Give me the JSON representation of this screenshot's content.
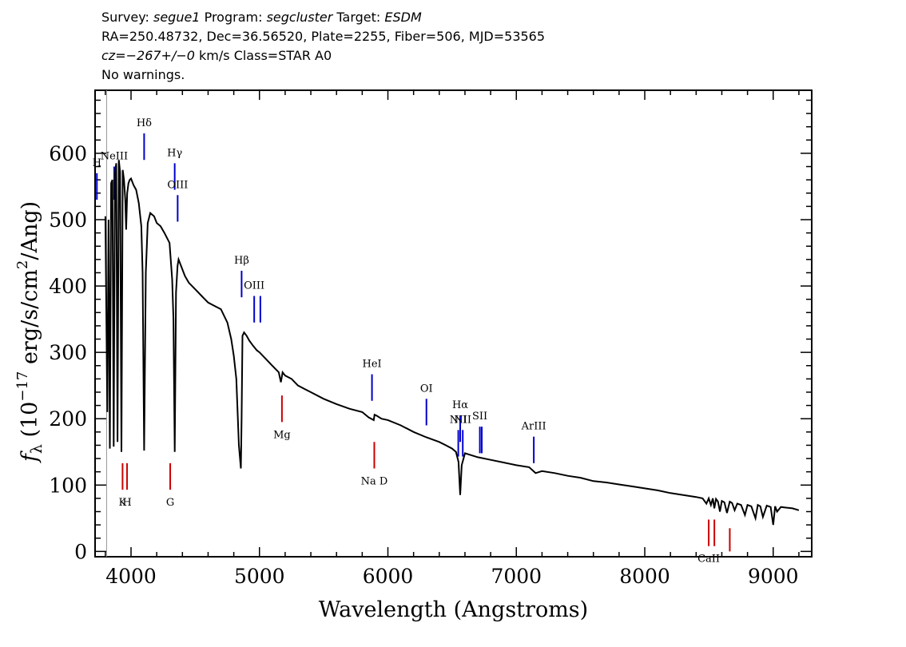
{
  "header": {
    "survey_label": "Survey:",
    "survey": "segue1",
    "program_label": "Program:",
    "program": "segcluster",
    "target_label": "Target:",
    "target": "ESDM",
    "line2": "RA=250.48732, Dec=36.56520, Plate=2255, Fiber=506, MJD=53565",
    "cz": "cz=−267+/−0",
    "cz_rest": " km/s Class=STAR A0",
    "warnings": "No warnings."
  },
  "chart_data": {
    "type": "line",
    "xlabel": "Wavelength (Angstroms)",
    "ylabel": "f_λ (10^-17 erg/s/cm^2/Ang)",
    "xlim": [
      3720,
      9300
    ],
    "ylim": [
      -8,
      695
    ],
    "x_ticks": [
      4000,
      5000,
      6000,
      7000,
      8000,
      9000
    ],
    "y_ticks": [
      0,
      100,
      200,
      300,
      400,
      500,
      600
    ],
    "series": [
      {
        "color": "#000000",
        "x": [
          3800,
          3815,
          3825,
          3835,
          3845,
          3855,
          3865,
          3875,
          3885,
          3895,
          3905,
          3915,
          3925,
          3935,
          3945,
          3955,
          3962,
          3970,
          3980,
          3990,
          4000,
          4020,
          4040,
          4060,
          4080,
          4090,
          4102,
          4115,
          4130,
          4150,
          4180,
          4200,
          4230,
          4260,
          4300,
          4320,
          4330,
          4340,
          4350,
          4362,
          4370,
          4390,
          4420,
          4450,
          4500,
          4550,
          4600,
          4650,
          4700,
          4750,
          4780,
          4800,
          4820,
          4840,
          4855,
          4861,
          4868,
          4880,
          4900,
          4920,
          4950,
          4980,
          5000,
          5050,
          5100,
          5150,
          5167,
          5180,
          5200,
          5250,
          5300,
          5400,
          5500,
          5600,
          5700,
          5800,
          5850,
          5890,
          5896,
          5910,
          5950,
          6000,
          6100,
          6200,
          6300,
          6400,
          6450,
          6500,
          6530,
          6550,
          6563,
          6575,
          6600,
          6650,
          6700,
          6800,
          6900,
          7000,
          7100,
          7150,
          7200,
          7300,
          7400,
          7500,
          7600,
          7700,
          7800,
          7900,
          8000,
          8100,
          8200,
          8300,
          8400,
          8450,
          8480,
          8498,
          8515,
          8530,
          8542,
          8555,
          8570,
          8585,
          8600,
          8620,
          8640,
          8662,
          8680,
          8700,
          8720,
          8750,
          8780,
          8800,
          8830,
          8862,
          8880,
          8900,
          8920,
          8950,
          8980,
          9000,
          9015,
          9030,
          9060,
          9100,
          9150,
          9200
        ],
        "y": [
          505,
          210,
          500,
          155,
          555,
          560,
          158,
          570,
          585,
          165,
          590,
          572,
          150,
          575,
          560,
          530,
          485,
          540,
          555,
          560,
          562,
          552,
          545,
          525,
          490,
          420,
          152,
          420,
          495,
          510,
          505,
          495,
          490,
          480,
          465,
          410,
          350,
          150,
          390,
          430,
          440,
          430,
          415,
          405,
          395,
          385,
          375,
          370,
          365,
          345,
          320,
          295,
          260,
          160,
          125,
          200,
          325,
          330,
          325,
          318,
          310,
          303,
          300,
          290,
          280,
          270,
          255,
          270,
          265,
          260,
          250,
          240,
          230,
          222,
          215,
          210,
          202,
          198,
          206,
          205,
          200,
          198,
          190,
          180,
          172,
          165,
          160,
          155,
          150,
          135,
          85,
          130,
          148,
          145,
          142,
          138,
          134,
          130,
          127,
          118,
          121,
          118,
          114,
          111,
          106,
          104,
          101,
          98,
          95,
          92,
          88,
          85,
          82,
          80,
          72,
          80,
          70,
          80,
          65,
          79,
          75,
          60,
          76,
          74,
          58,
          75,
          73,
          62,
          72,
          70,
          55,
          70,
          68,
          50,
          70,
          68,
          52,
          69,
          67,
          40,
          68,
          60,
          67,
          66,
          65,
          62
        ]
      }
    ],
    "line_markers": [
      {
        "label": "NeIII",
        "wave": 3869,
        "color": "#0000cc",
        "y0": 530,
        "y1": 580
      },
      {
        "label": "Hδ",
        "wave": 4102,
        "color": "#0000cc",
        "y0": 590,
        "y1": 630
      },
      {
        "label": "Hγ",
        "wave": 4340,
        "color": "#0000cc",
        "y0": 545,
        "y1": 585
      },
      {
        "label": "OIII",
        "wave": 4363,
        "color": "#0000cc",
        "y0": 497,
        "y1": 537
      },
      {
        "label": "Hβ",
        "wave": 4861,
        "color": "#0000cc",
        "y0": 383,
        "y1": 423
      },
      {
        "label": "OIII",
        "wave": 4959,
        "color": "#0000cc",
        "y0": 345,
        "y1": 385
      },
      {
        "label": "",
        "wave": 5007,
        "color": "#0000cc",
        "y0": 345,
        "y1": 385
      },
      {
        "label": "HeI",
        "wave": 5876,
        "color": "#0000cc",
        "y0": 227,
        "y1": 267
      },
      {
        "label": "OI",
        "wave": 6300,
        "color": "#0000cc",
        "y0": 190,
        "y1": 230
      },
      {
        "label": "NII",
        "wave": 6548,
        "color": "#0000cc",
        "y0": 143,
        "y1": 183
      },
      {
        "label": "Hα",
        "wave": 6563,
        "color": "#0000cc",
        "y0": 165,
        "y1": 205
      },
      {
        "label": "NII",
        "wave": 6583,
        "color": "#0000cc",
        "y0": 143,
        "y1": 183
      },
      {
        "label": "SII",
        "wave": 6716,
        "color": "#0000cc",
        "y0": 148,
        "y1": 188
      },
      {
        "label": "",
        "wave": 6731,
        "color": "#0000cc",
        "y0": 148,
        "y1": 188
      },
      {
        "label": "ArIII",
        "wave": 7136,
        "color": "#0000cc",
        "y0": 133,
        "y1": 173
      },
      {
        "label": "H",
        "wave": 3734,
        "color": "#0000cc",
        "y0": 530,
        "y1": 570
      },
      {
        "label": "K",
        "wave": 3934,
        "color": "#cc0000",
        "y0": 93,
        "y1": 133
      },
      {
        "label": "H",
        "wave": 3969,
        "color": "#cc0000",
        "y0": 93,
        "y1": 133
      },
      {
        "label": "G",
        "wave": 4305,
        "color": "#cc0000",
        "y0": 93,
        "y1": 133
      },
      {
        "label": "Mg",
        "wave": 5175,
        "color": "#cc0000",
        "y0": 195,
        "y1": 235
      },
      {
        "label": "Na D",
        "wave": 5894,
        "color": "#cc0000",
        "y0": 125,
        "y1": 165
      },
      {
        "label": "CaII",
        "wave": 8498,
        "color": "#cc0000",
        "y0": 8,
        "y1": 48
      },
      {
        "label": "",
        "wave": 8542,
        "color": "#cc0000",
        "y0": 8,
        "y1": 48
      },
      {
        "label": "",
        "wave": 8662,
        "color": "#cc0000",
        "y0": 0,
        "y1": 35
      }
    ]
  }
}
